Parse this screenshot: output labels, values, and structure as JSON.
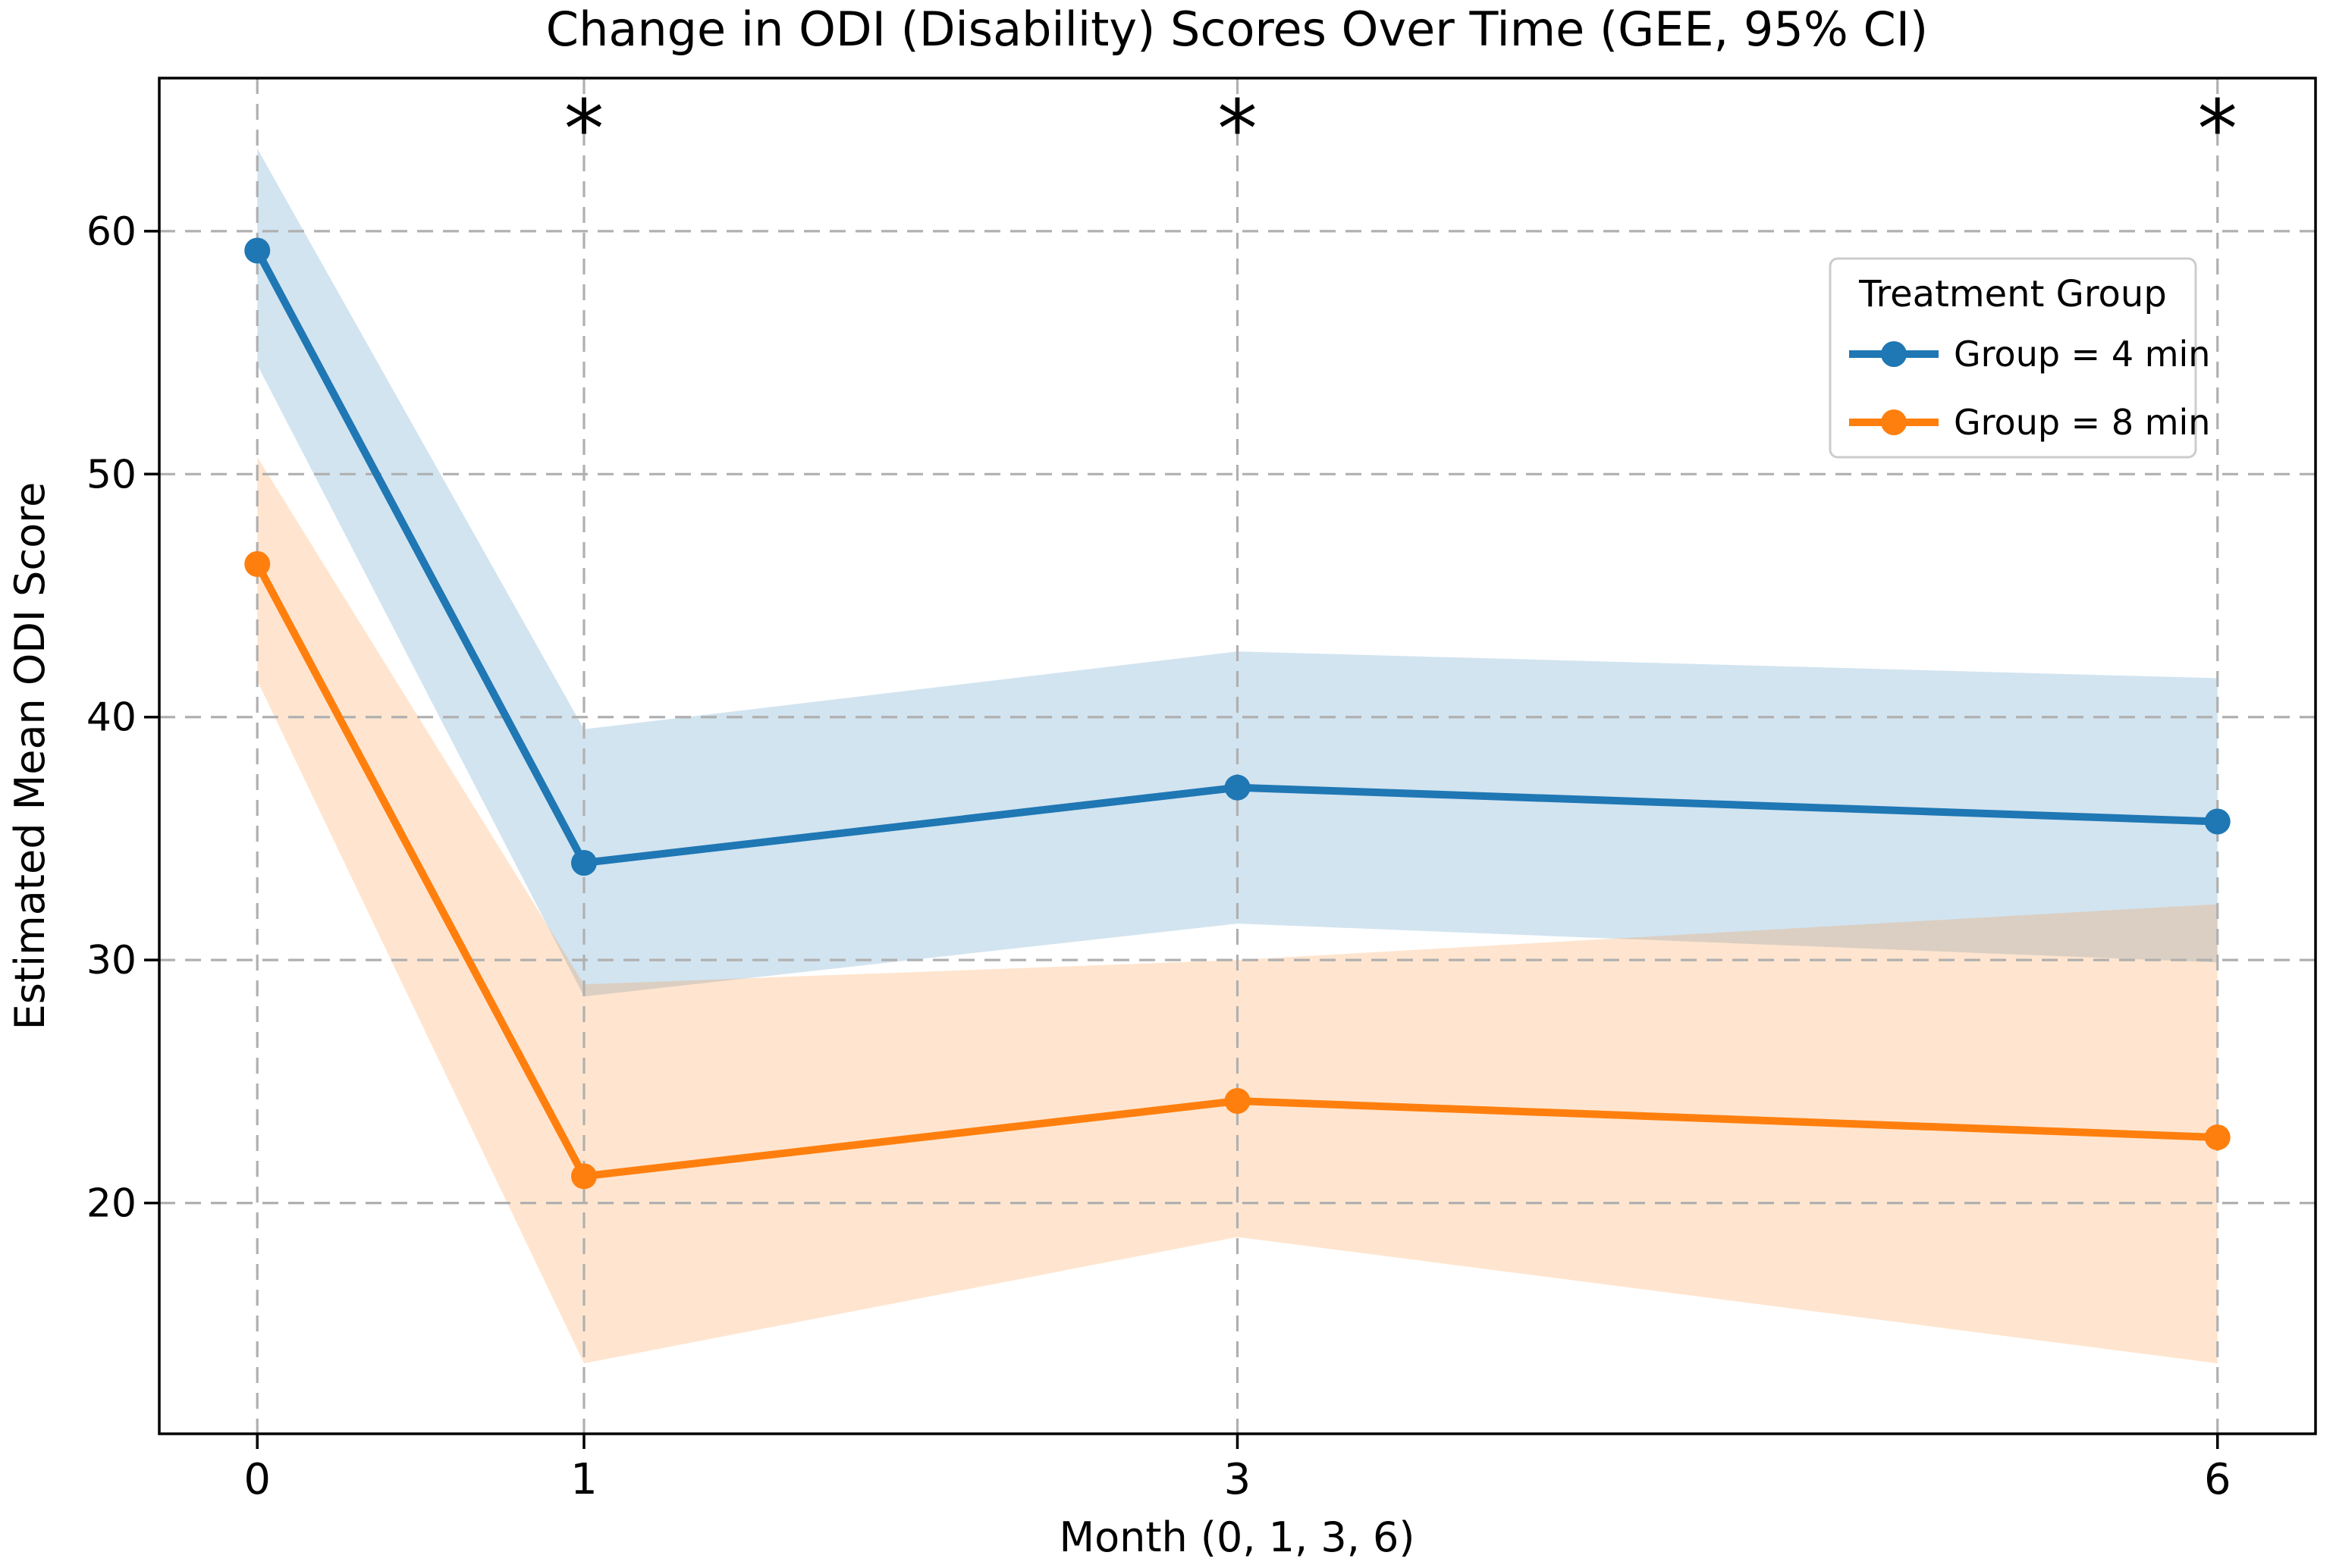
{
  "chart_data": {
    "type": "line",
    "title": "Change in ODI (Disability) Scores Over Time (GEE, 95% CI)",
    "xlabel": "Month (0, 1, 3, 6)",
    "ylabel": "Estimated Mean ODI Score",
    "x": [
      0,
      1,
      3,
      6
    ],
    "xtick_labels": [
      "0",
      "1",
      "3",
      "6"
    ],
    "yticks": [
      20,
      30,
      40,
      50,
      60
    ],
    "xlim": [
      -0.3,
      6.3
    ],
    "ylim": [
      10.5,
      66.3
    ],
    "grid": true,
    "grid_color": "#b0b0b0",
    "background_color": "#ffffff",
    "legend": {
      "title": "Treatment Group",
      "position": "upper right"
    },
    "series": [
      {
        "name": "Group = 4 min",
        "color": "#1f77b4",
        "mean": [
          59.2,
          34.0,
          37.1,
          35.7
        ],
        "ci_lower": [
          54.5,
          28.5,
          31.5,
          29.9
        ],
        "ci_upper": [
          63.4,
          39.5,
          42.7,
          41.6
        ]
      },
      {
        "name": "Group = 8 min",
        "color": "#ff7f0e",
        "mean": [
          46.3,
          21.1,
          24.2,
          22.7
        ],
        "ci_lower": [
          41.5,
          13.4,
          18.6,
          13.4
        ],
        "ci_upper": [
          50.7,
          29.0,
          30.0,
          32.3
        ]
      }
    ],
    "ci_band_opacity": 0.2,
    "annotations": {
      "significance_markers": {
        "symbol": "*",
        "months": [
          1,
          3,
          6
        ],
        "y": 65
      }
    }
  }
}
